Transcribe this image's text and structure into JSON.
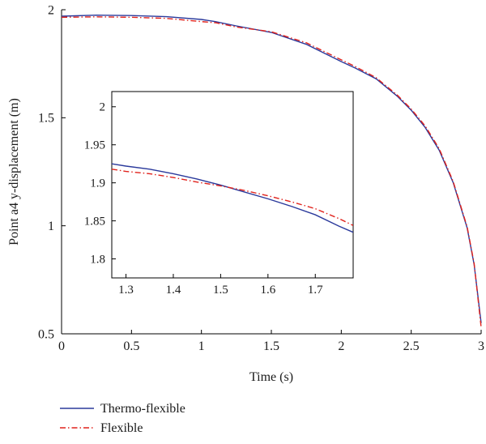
{
  "chart_data": [
    {
      "type": "line",
      "xlabel": "Time (s)",
      "ylabel": "Point a4 y-displacement (m)",
      "xlim": [
        0,
        3
      ],
      "ylim": [
        0.5,
        2
      ],
      "xticks": [
        "0",
        "0.5",
        "1",
        "1.5",
        "2",
        "2.5",
        "3"
      ],
      "yticks": [
        "0.5",
        "1",
        "1.5",
        "2"
      ],
      "xtick_values": [
        0,
        0.5,
        1,
        1.5,
        2,
        2.5,
        3
      ],
      "ytick_values": [
        0.5,
        1,
        1.5,
        2
      ],
      "grid": false,
      "legend_position": "bottom-left, below plot",
      "series": [
        {
          "name": "Thermo-flexible",
          "color": "#2b3a9c",
          "x": [
            0,
            0.25,
            0.5,
            0.75,
            1.0,
            1.1,
            1.25,
            1.5,
            1.75,
            2.0,
            2.1,
            2.25,
            2.4,
            2.5,
            2.6,
            2.7,
            2.8,
            2.9,
            2.95,
            3.0
          ],
          "y": [
            1.97,
            1.975,
            1.973,
            1.968,
            1.955,
            1.945,
            1.925,
            1.895,
            1.84,
            1.76,
            1.73,
            1.68,
            1.6,
            1.535,
            1.455,
            1.35,
            1.2,
            0.99,
            0.82,
            0.55
          ]
        },
        {
          "name": "Flexible",
          "color": "#e0221c",
          "x": [
            0,
            0.25,
            0.5,
            0.75,
            1.0,
            1.1,
            1.25,
            1.5,
            1.75,
            2.0,
            2.1,
            2.25,
            2.4,
            2.5,
            2.6,
            2.7,
            2.8,
            2.9,
            2.95,
            3.0
          ],
          "y": [
            1.965,
            1.967,
            1.965,
            1.96,
            1.945,
            1.94,
            1.92,
            1.898,
            1.847,
            1.768,
            1.737,
            1.685,
            1.605,
            1.54,
            1.462,
            1.357,
            1.205,
            0.995,
            0.825,
            0.53
          ]
        }
      ]
    },
    {
      "type": "line",
      "inset": true,
      "xlim": [
        1.27,
        1.78
      ],
      "ylim": [
        1.775,
        2.02
      ],
      "xticks": [
        "1.3",
        "1.4",
        "1.5",
        "1.6",
        "1.7"
      ],
      "yticks": [
        "1.8",
        "1.85",
        "1.9",
        "1.95",
        "2"
      ],
      "xtick_values": [
        1.3,
        1.4,
        1.5,
        1.6,
        1.7
      ],
      "ytick_values": [
        1.8,
        1.85,
        1.9,
        1.95,
        2
      ],
      "series": [
        {
          "name": "Thermo-flexible",
          "color": "#2b3a9c",
          "x": [
            1.27,
            1.3,
            1.35,
            1.4,
            1.45,
            1.5,
            1.55,
            1.6,
            1.65,
            1.7,
            1.75,
            1.78
          ],
          "y": [
            1.925,
            1.922,
            1.918,
            1.912,
            1.905,
            1.897,
            1.888,
            1.879,
            1.869,
            1.858,
            1.843,
            1.835
          ]
        },
        {
          "name": "Flexible",
          "color": "#e0221c",
          "x": [
            1.27,
            1.3,
            1.35,
            1.4,
            1.45,
            1.5,
            1.55,
            1.6,
            1.65,
            1.7,
            1.75,
            1.78
          ],
          "y": [
            1.918,
            1.915,
            1.912,
            1.907,
            1.901,
            1.896,
            1.89,
            1.883,
            1.875,
            1.866,
            1.853,
            1.844
          ]
        }
      ]
    }
  ],
  "legend": [
    {
      "label": "Thermo-flexible",
      "color": "#2b3a9c",
      "style": "solid"
    },
    {
      "label": "Flexible",
      "color": "#e0221c",
      "style": "dash-dot"
    }
  ]
}
